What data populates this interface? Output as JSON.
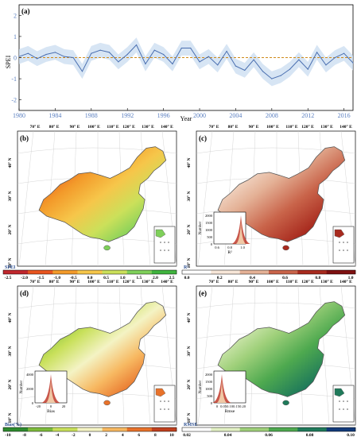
{
  "panel_a": {
    "label": "(a)",
    "ylabel": "SPEI",
    "xlabel": "Year",
    "chart_data": {
      "type": "line",
      "title": "",
      "xlabel": "Year",
      "ylabel": "SPEI",
      "xlim": [
        1980,
        2017
      ],
      "ylim": [
        -2.5,
        2.5
      ],
      "x_ticks": [
        1980,
        1984,
        1988,
        1992,
        1996,
        2000,
        2004,
        2008,
        2012,
        2016
      ],
      "y_ticks": [
        -2,
        -1,
        0,
        1,
        2
      ],
      "reference_line": 0,
      "series": [
        {
          "x": [
            1980,
            1981,
            1982,
            1983,
            1984,
            1985,
            1986,
            1987,
            1988,
            1989,
            1990,
            1991,
            1992,
            1993,
            1994,
            1995,
            1996,
            1997,
            1998,
            1999,
            2000,
            2001,
            2002,
            2003,
            2004,
            2005,
            2006,
            2007,
            2008,
            2009,
            2010,
            2011,
            2012,
            2013,
            2014,
            2015,
            2016,
            2017
          ],
          "values": [
            0.05,
            0.2,
            -0.05,
            0.15,
            0.25,
            0.05,
            0.0,
            -0.65,
            0.2,
            0.35,
            0.25,
            -0.2,
            0.15,
            0.6,
            -0.3,
            0.35,
            0.15,
            -0.3,
            0.45,
            0.45,
            -0.2,
            0.05,
            -0.35,
            0.3,
            -0.4,
            -0.6,
            -0.1,
            -0.65,
            -1.0,
            -0.85,
            -0.55,
            -0.1,
            -0.55,
            0.25,
            -0.35,
            0.0,
            0.2,
            -0.25
          ],
          "band": 0.35
        }
      ],
      "grid": false
    }
  },
  "map_labels": {
    "lon_ticks": [
      "70° E",
      "80° E",
      "90° E",
      "100° E",
      "110° E",
      "120° E",
      "130° E",
      "140° E"
    ],
    "lat_ticks": [
      "40° N",
      "30° N",
      "20° N",
      "10° N"
    ]
  },
  "panels": [
    {
      "label": "(b)",
      "colorbar_title": "SPEI",
      "colorbar_ticks": [
        "-2.5",
        "-2.0",
        "-1.5",
        "-1.0",
        "-0.5",
        "0.0",
        "0.5",
        "1.0",
        "1.5",
        "2.0",
        "2.5"
      ],
      "colors": [
        "#c0272d",
        "#e8551f",
        "#f39a2a",
        "#f6c64a",
        "#cbe05a",
        "#7fd05a",
        "#3fb43e"
      ],
      "show_lon": false
    },
    {
      "label": "(c)",
      "colorbar_title": "R²",
      "colorbar_ticks": [
        "0.0",
        "0.2",
        "0.4",
        "0.6",
        "0.8",
        "1.0"
      ],
      "colors": [
        "#ffffff",
        "#f7e6d8",
        "#e4b196",
        "#c9644a",
        "#a82a1e",
        "#7e1010"
      ],
      "show_lon": false,
      "inset": {
        "ylabel": "Number",
        "xlabel": "R²",
        "y_ticks": [
          "2000",
          "1500",
          "1000",
          "500",
          "0"
        ],
        "x_ticks": [
          "0.6",
          "0.8",
          "1.0"
        ]
      }
    },
    {
      "label": "(d)",
      "colorbar_title": "Bias(%)",
      "colorbar_ticks": [
        "-10",
        "-8",
        "-6",
        "-4",
        "-2",
        "0",
        "2",
        "4",
        "6",
        "8",
        "10"
      ],
      "colors": [
        "#2e8b2e",
        "#7dbb3c",
        "#c8e05a",
        "#f4f3c4",
        "#f7b861",
        "#e8722a",
        "#c0401e"
      ],
      "show_lon": true,
      "inset": {
        "ylabel": "Number",
        "xlabel": "Bias",
        "y_ticks": [
          "4000",
          "2000",
          "0"
        ],
        "x_ticks": [
          "-20",
          "0",
          "20"
        ]
      }
    },
    {
      "label": "(e)",
      "colorbar_title": "RMSE",
      "colorbar_ticks": [
        "0.02",
        "0.04",
        "0.06",
        "0.08",
        "0.10"
      ],
      "colors": [
        "#ffffff",
        "#e2f0c4",
        "#9fd07a",
        "#4ea94f",
        "#1f7a5a",
        "#123a7a"
      ],
      "show_lon": true,
      "inset": {
        "ylabel": "Number",
        "xlabel": "Rmse",
        "y_ticks": [
          "2000",
          "1500",
          "1000",
          "500",
          "0"
        ],
        "x_ticks": [
          "0",
          "0.05",
          "0.10",
          "0.15",
          "0.20"
        ]
      }
    }
  ]
}
